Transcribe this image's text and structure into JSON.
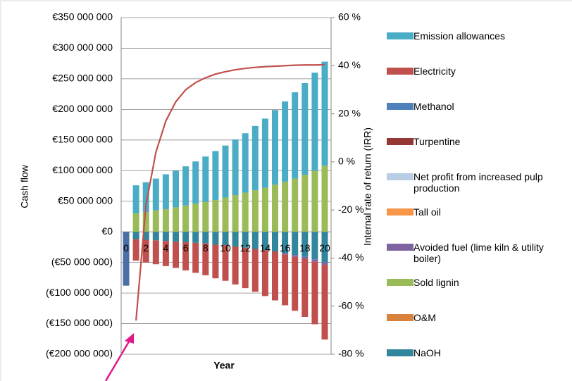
{
  "chart_data": {
    "type": "bar",
    "x_label": "Year",
    "y_label": "Cash flow",
    "y2_label": "Internal rate of return (IRR)",
    "categories": [
      "0",
      null,
      "2",
      null,
      "4",
      null,
      "6",
      null,
      "8",
      null,
      "10",
      null,
      "12",
      null,
      "14",
      null,
      "16",
      null,
      "18",
      null,
      "20"
    ],
    "ylim": [
      -200000000,
      350000000
    ],
    "yticks": [
      {
        "value": 350000000,
        "label": "€350 000 000"
      },
      {
        "value": 300000000,
        "label": "€300 000 000"
      },
      {
        "value": 250000000,
        "label": "€250 000 000"
      },
      {
        "value": 200000000,
        "label": "€200 000 000"
      },
      {
        "value": 150000000,
        "label": "€150 000 000"
      },
      {
        "value": 100000000,
        "label": "€100 000 000"
      },
      {
        "value": 50000000,
        "label": "€50 000 000"
      },
      {
        "value": 0,
        "label": "€0"
      },
      {
        "value": -50000000,
        "label": "(€50 000 000)"
      },
      {
        "value": -100000000,
        "label": "(€100 000 000)"
      },
      {
        "value": -150000000,
        "label": "(€150 000 000)"
      },
      {
        "value": -200000000,
        "label": "(€200 000 000)"
      }
    ],
    "negative_tick_color": "#ff0000",
    "y2lim": [
      -80,
      60
    ],
    "y2ticks": [
      {
        "value": 60,
        "label": "60 %"
      },
      {
        "value": 40,
        "label": "40 %"
      },
      {
        "value": 20,
        "label": "20 %"
      },
      {
        "value": 0,
        "label": "0 %"
      },
      {
        "value": -20,
        "label": "-20 %"
      },
      {
        "value": -40,
        "label": "-40 %"
      },
      {
        "value": -60,
        "label": "-60 %"
      },
      {
        "value": -80,
        "label": "-80 %"
      }
    ],
    "grid": true,
    "series": [
      {
        "name": "Emission allowances",
        "color": "#4bacc6",
        "values": [
          0,
          46000000,
          49000000,
          52000000,
          57000000,
          60000000,
          64000000,
          69000000,
          74000000,
          80000000,
          85000000,
          91000000,
          97000000,
          105000000,
          113000000,
          122000000,
          131000000,
          141000000,
          150000000,
          160000000,
          170000000
        ]
      },
      {
        "name": "Electricity",
        "color": "#c0504d",
        "values": [
          0,
          -35000000,
          -37000000,
          -39000000,
          -41000000,
          -43000000,
          -46000000,
          -49000000,
          -52000000,
          -55000000,
          -58000000,
          -62000000,
          -66000000,
          -70000000,
          -75000000,
          -80000000,
          -83000000,
          -88000000,
          -95000000,
          -102000000,
          -122000000
        ]
      },
      {
        "name": "Methanol",
        "color": "#4f81bd",
        "values": [
          0,
          0,
          0,
          0,
          0,
          0,
          0,
          0,
          0,
          0,
          0,
          0,
          0,
          0,
          0,
          0,
          0,
          0,
          0,
          0,
          0
        ]
      },
      {
        "name": "Turpentine",
        "color": "#953735",
        "values": [
          0,
          0,
          0,
          0,
          0,
          0,
          0,
          0,
          0,
          0,
          0,
          0,
          0,
          0,
          0,
          0,
          0,
          0,
          0,
          0,
          0
        ]
      },
      {
        "name": "Net profit from increased pulp production",
        "color": "#b9cde5",
        "values": [
          0,
          0,
          0,
          0,
          0,
          0,
          0,
          0,
          0,
          0,
          0,
          0,
          0,
          0,
          0,
          0,
          0,
          0,
          0,
          0,
          0
        ]
      },
      {
        "name": "Tall oil",
        "color": "#f79646",
        "values": [
          0,
          0,
          0,
          0,
          0,
          0,
          0,
          0,
          0,
          0,
          0,
          0,
          0,
          0,
          0,
          0,
          0,
          0,
          0,
          0,
          0
        ]
      },
      {
        "name": "Avoided fuel (lime kiln & utility boiler)",
        "color": "#8064a2",
        "values": [
          0,
          0,
          0,
          0,
          0,
          0,
          0,
          0,
          0,
          0,
          0,
          0,
          0,
          0,
          0,
          0,
          -2000000,
          -3000000,
          -3000000,
          -4000000,
          -4000000
        ]
      },
      {
        "name": "Sold lignin",
        "color": "#9bbb59",
        "values": [
          0,
          30000000,
          32000000,
          35000000,
          37000000,
          40000000,
          43000000,
          46000000,
          49000000,
          52000000,
          56000000,
          60000000,
          64000000,
          68000000,
          72000000,
          77000000,
          82000000,
          87000000,
          93000000,
          100000000,
          108000000
        ]
      },
      {
        "name": "O&M",
        "color": "#d9823b",
        "values": [
          0,
          0,
          0,
          0,
          0,
          0,
          0,
          0,
          0,
          0,
          0,
          0,
          0,
          0,
          0,
          0,
          0,
          0,
          0,
          0,
          0
        ]
      },
      {
        "name": "NaOH",
        "color": "#31859c",
        "values": [
          0,
          -12000000,
          -13000000,
          -14000000,
          -15000000,
          -16000000,
          -17000000,
          -18000000,
          -19000000,
          -21000000,
          -22000000,
          -24000000,
          -26000000,
          -28000000,
          -30000000,
          -32000000,
          -35000000,
          -38000000,
          -41000000,
          -45000000,
          -50000000
        ]
      },
      {
        "color": "#4a6fa5",
        "values": [
          -88000000,
          0,
          0,
          0,
          0,
          0,
          0,
          0,
          0,
          0,
          0,
          0,
          0,
          0,
          0,
          0,
          0,
          0,
          0,
          0,
          0
        ]
      },
      {
        "type": "line",
        "axis": "y2",
        "color": "#c0504d",
        "values": [
          null,
          -66,
          -18,
          4,
          17,
          25,
          30,
          33,
          35,
          36.5,
          37.5,
          38.3,
          38.9,
          39.3,
          39.6,
          39.8,
          40,
          40.2,
          40.3,
          40.3,
          40.4
        ]
      }
    ]
  }
}
